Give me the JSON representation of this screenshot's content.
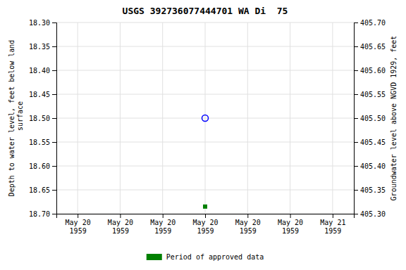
{
  "chart_data": {
    "type": "scatter",
    "title": "USGS 392736077444701 WA Di  75",
    "ylabel": "Depth to water level, feet below land\n surface",
    "y2label": "Groundwater level above NGVD 1929, feet",
    "categories": [
      "May 20\n1959",
      "May 20\n1959",
      "May 20\n1959",
      "May 20\n1959",
      "May 20\n1959",
      "May 20\n1959",
      "May 21\n1959"
    ],
    "series": [
      {
        "color": "#0000ff",
        "marker": "open-circle",
        "values": [
          null,
          null,
          null,
          18.5,
          null,
          null,
          null
        ]
      },
      {
        "name": "Period of approved data",
        "color": "#008000",
        "marker": "square",
        "values": [
          null,
          null,
          null,
          18.685,
          null,
          null,
          null
        ]
      }
    ],
    "ylim": [
      18.7,
      18.3
    ],
    "yticks": [
      {
        "value": 18.3,
        "label": "18.30"
      },
      18.35,
      {
        "value": 18.4,
        "label": "18.40"
      },
      18.45,
      {
        "value": 18.5,
        "label": "18.50"
      },
      18.55,
      {
        "value": 18.6,
        "label": "18.60"
      },
      18.65,
      {
        "value": 18.7,
        "label": "18.70"
      }
    ],
    "y2lim": [
      405.3,
      405.7
    ],
    "y2ticks": [
      {
        "value": 405.7,
        "label": "405.70"
      },
      405.65,
      {
        "value": 405.6,
        "label": "405.60"
      },
      405.55,
      {
        "value": 405.5,
        "label": "405.50"
      },
      405.45,
      {
        "value": 405.4,
        "label": "405.40"
      },
      405.35,
      {
        "value": 405.3,
        "label": "405.30"
      }
    ],
    "grid": true,
    "legend": "bottom"
  }
}
